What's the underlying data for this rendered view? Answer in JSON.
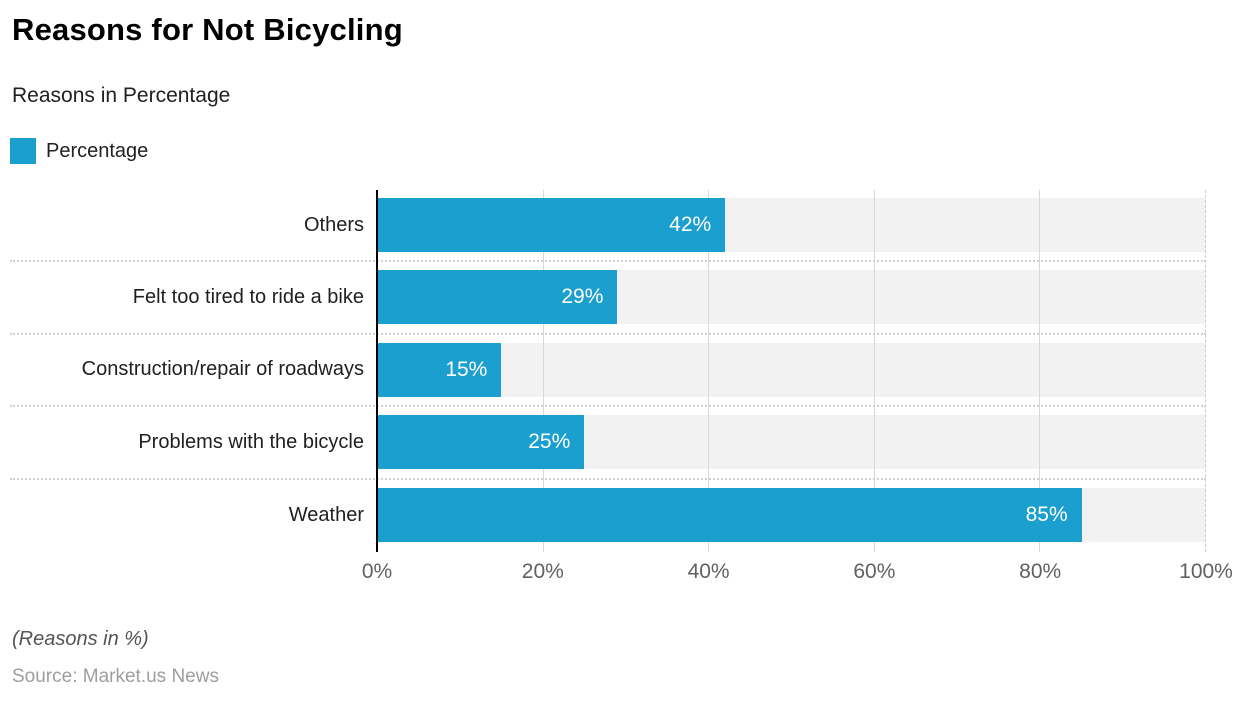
{
  "header": {
    "title": "Reasons for Not Bicycling",
    "subtitle": "Reasons in Percentage"
  },
  "legend": {
    "label": "Percentage",
    "color": "#1B9FCE"
  },
  "chart_data": {
    "type": "bar",
    "orientation": "horizontal",
    "title": "Reasons for Not Bicycling",
    "subtitle": "Reasons in Percentage",
    "series_name": "Percentage",
    "categories": [
      "Others",
      "Felt too tired to ride a bike",
      "Construction/repair of roadways",
      "Problems with the bicycle",
      "Weather"
    ],
    "values": [
      42,
      29,
      15,
      25,
      85
    ],
    "value_labels": [
      "42%",
      "29%",
      "15%",
      "25%",
      "85%"
    ],
    "x_ticks": [
      "0%",
      "20%",
      "40%",
      "60%",
      "80%",
      "100%"
    ],
    "xlim": [
      0,
      100
    ],
    "gridline_percents": [
      20,
      40,
      60,
      80
    ],
    "bar_color": "#1B9FCE",
    "track_color": "#F2F2F2",
    "grid": true,
    "legend_position": "top-left",
    "xlabel": "",
    "ylabel": ""
  },
  "footer": {
    "note": "(Reasons in %)",
    "source": "Source: Market.us News"
  }
}
